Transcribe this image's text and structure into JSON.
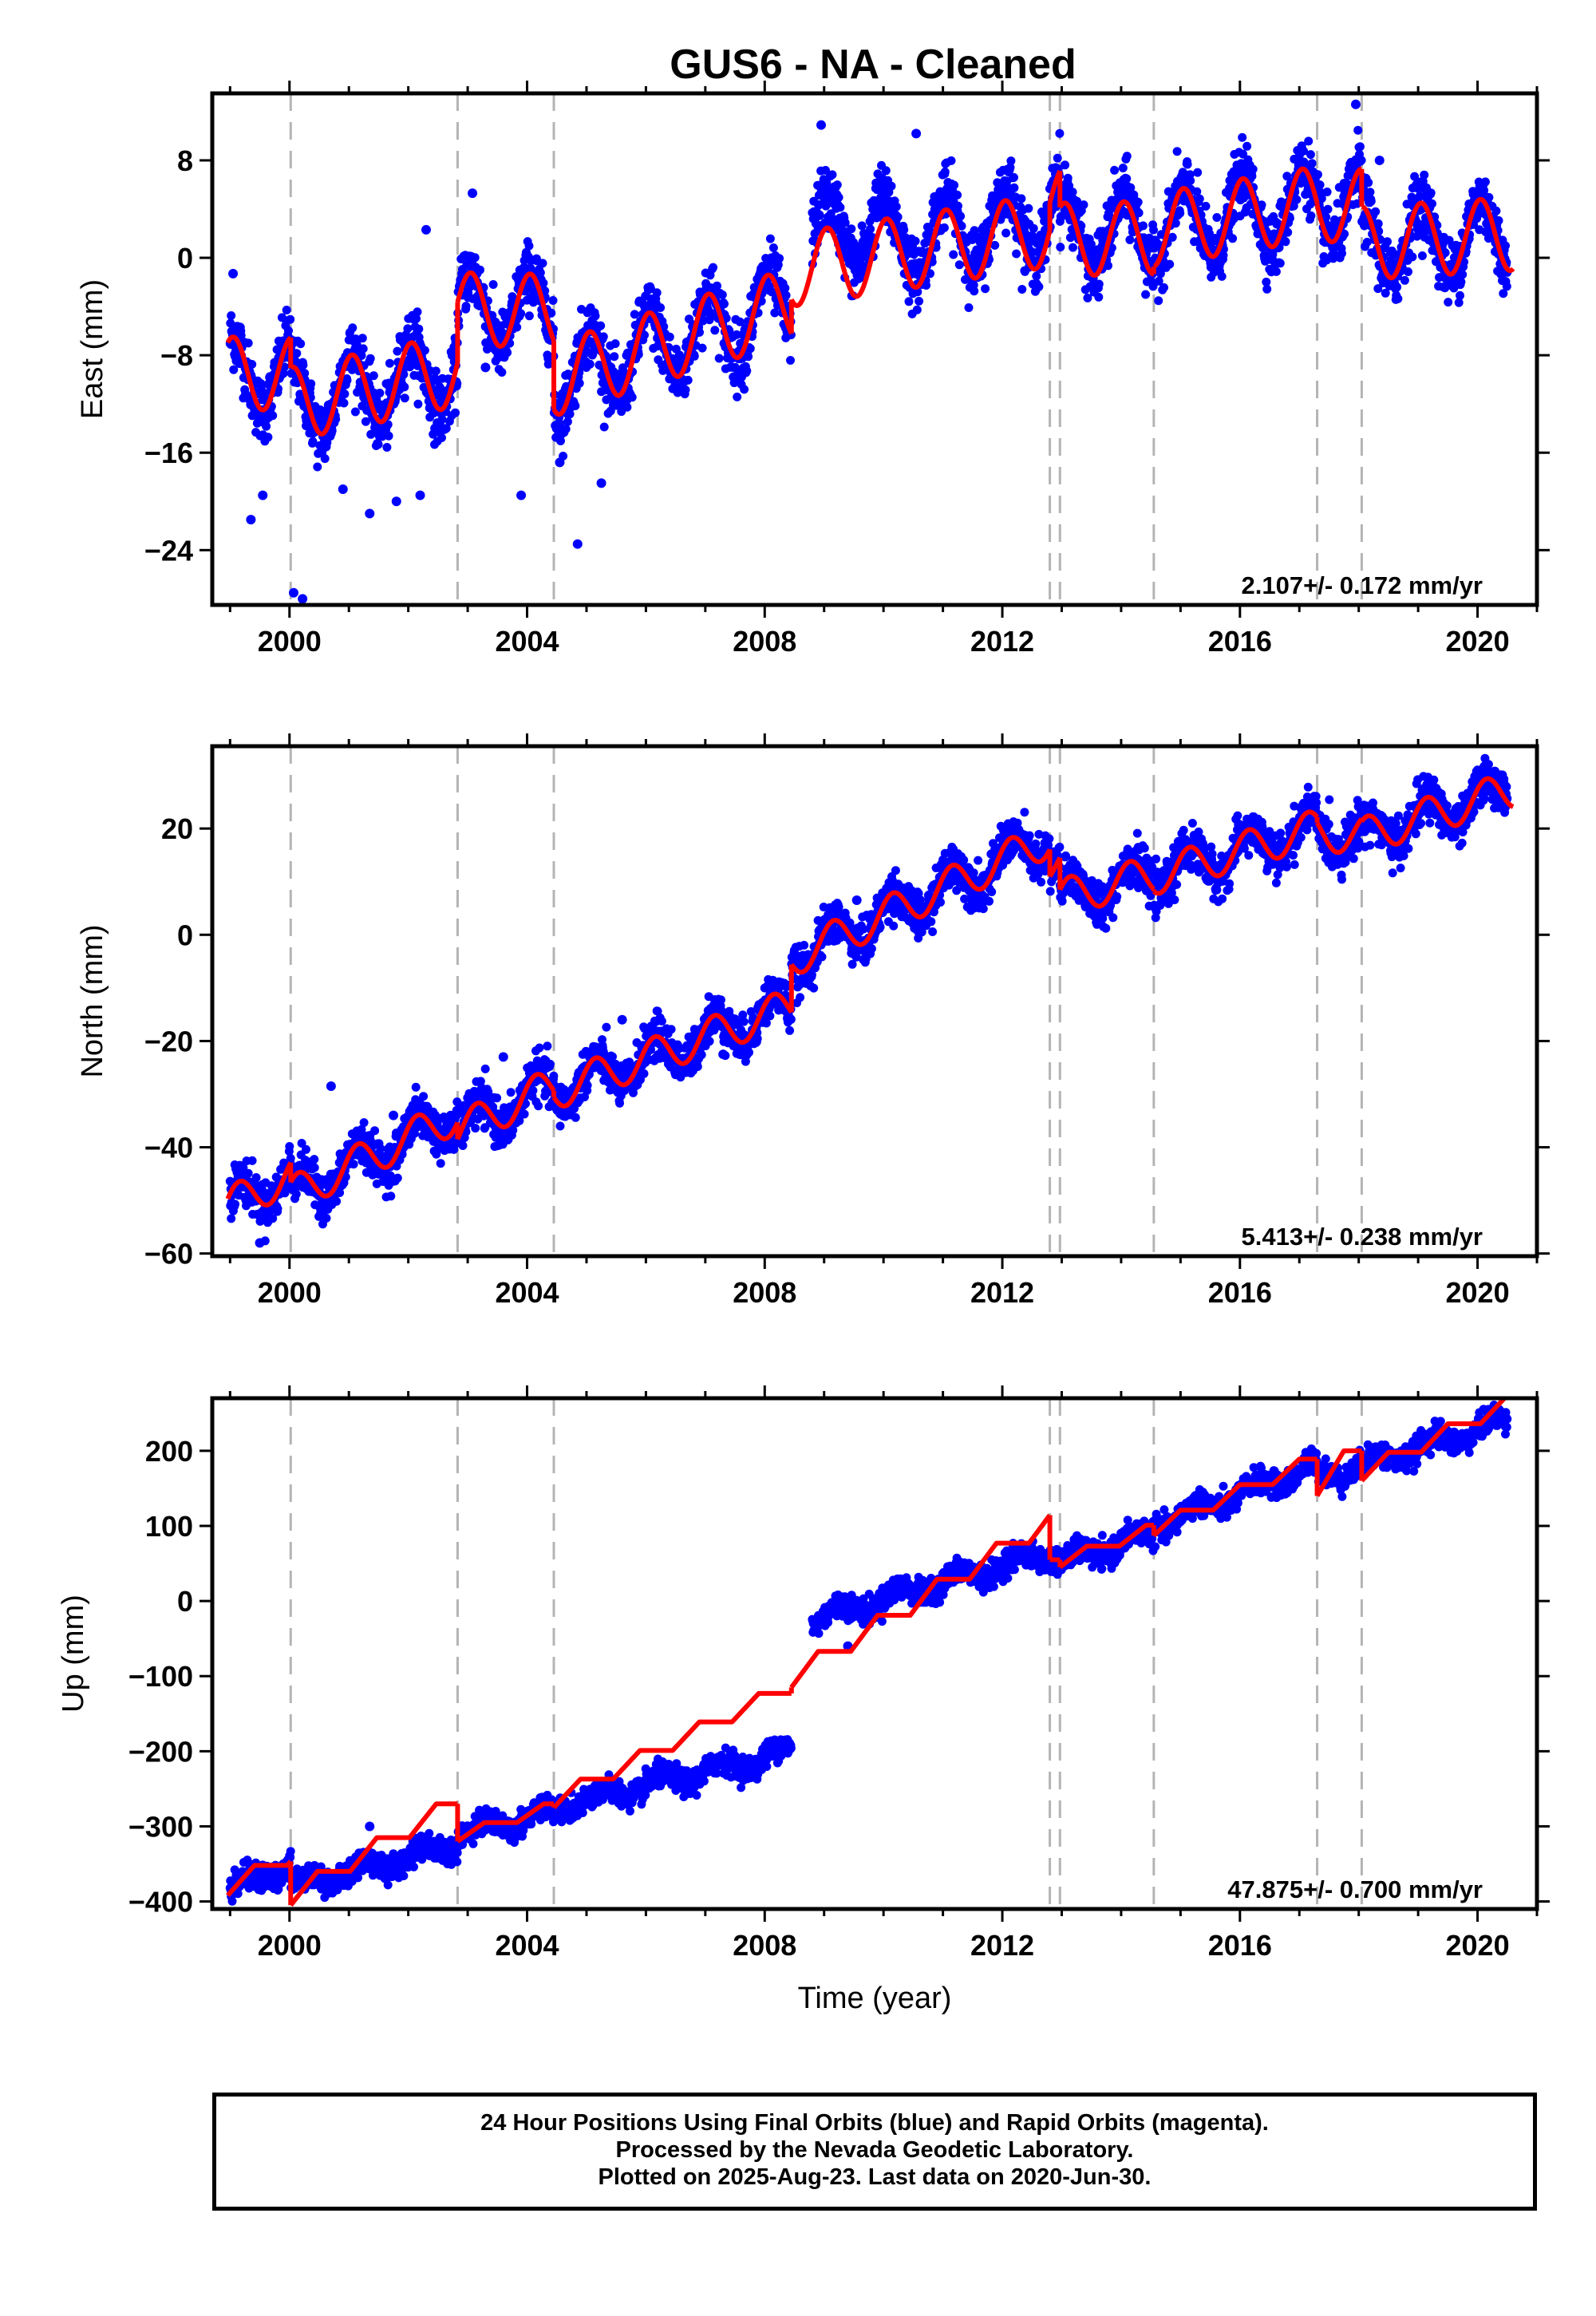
{
  "title": "GUS6  - NA - Cleaned",
  "footer": {
    "line1": "24 Hour Positions Using Final Orbits (blue) and Rapid Orbits (magenta).",
    "line2": "Processed by the Nevada Geodetic Laboratory.",
    "line3": "Plotted on 2025-Aug-23. Last data on 2020-Jun-30."
  },
  "colors": {
    "data": "#0000ff",
    "model": "#ff0000",
    "breaks": "#b4b4b4",
    "frame": "#000000"
  },
  "chart_data": [
    {
      "type": "scatter",
      "component": "east",
      "ylabel": "East (mm)",
      "xlabel": "",
      "xlim": [
        1998.7,
        2021.0
      ],
      "ylim": [
        -28.5,
        13.5
      ],
      "xticks": [
        2000,
        2004,
        2008,
        2012,
        2016,
        2020
      ],
      "yticks": [
        -24,
        -16,
        -8,
        0,
        8
      ],
      "ytick_labels": [
        "−24",
        "−16",
        "−8",
        "0",
        "8"
      ],
      "rate_text": "2.107+/- 0.172 mm/yr",
      "breaks": [
        2000.02,
        2002.83,
        2004.45,
        2012.8,
        2012.97,
        2014.55,
        2017.3,
        2018.05
      ],
      "data_range": [
        1999.0,
        2020.5
      ],
      "data_gap": [
        2008.45,
        2008.8
      ],
      "model": {
        "segments": [
          {
            "from": 1998.96,
            "to": 2000.02,
            "offset": -9.5,
            "slope": 0.0
          },
          {
            "from": 2000.02,
            "to": 2002.83,
            "offset": -12.0,
            "slope": 1.0
          },
          {
            "from": 2002.83,
            "to": 2004.45,
            "offset": -4.2,
            "slope": -0.1
          },
          {
            "from": 2004.45,
            "to": 2008.45,
            "offset": -10.0,
            "slope": 1.55
          },
          {
            "from": 2008.45,
            "to": 2012.8,
            "offset": -1.0,
            "slope": 0.75
          },
          {
            "from": 2012.8,
            "to": 2012.97,
            "offset": 4.5,
            "slope": 0.0
          },
          {
            "from": 2012.97,
            "to": 2014.55,
            "offset": 1.5,
            "slope": 0.1
          },
          {
            "from": 2014.55,
            "to": 2017.3,
            "offset": 2.3,
            "slope": 0.8
          },
          {
            "from": 2017.3,
            "to": 2018.05,
            "offset": 4.3,
            "slope": 0.0
          },
          {
            "from": 2018.05,
            "to": 2020.6,
            "offset": 1.2,
            "slope": 0.3
          }
        ],
        "annual_amp": 3.0,
        "annual_phase": 0.2
      },
      "scatter_sd": 1.3,
      "data_shift": [
        {
          "from": 2008.45,
          "to": 2010.0,
          "shift": 2.5
        },
        {
          "from": 2010.0,
          "to": 2012.8,
          "shift": 1.0
        },
        {
          "from": 2012.97,
          "to": 2014.55,
          "shift": 0.5
        }
      ],
      "outliers": [
        [
          1999.05,
          -1.3
        ],
        [
          1999.35,
          -21.5
        ],
        [
          1999.55,
          -19.5
        ],
        [
          2000.07,
          -27.5
        ],
        [
          2000.22,
          -28.0
        ],
        [
          2000.9,
          -19.0
        ],
        [
          2001.35,
          -21.0
        ],
        [
          2001.8,
          -20.0
        ],
        [
          2002.2,
          -19.5
        ],
        [
          2002.3,
          2.3
        ],
        [
          2002.45,
          -14.0
        ],
        [
          2003.08,
          5.3
        ],
        [
          2003.3,
          -9.0
        ],
        [
          2003.9,
          -19.5
        ],
        [
          2004.55,
          -16.8
        ],
        [
          2004.85,
          -23.5
        ],
        [
          2005.25,
          -18.5
        ],
        [
          2008.95,
          10.9
        ],
        [
          2010.55,
          10.2
        ],
        [
          2017.95,
          12.6
        ],
        [
          2018.35,
          8.0
        ]
      ]
    },
    {
      "type": "scatter",
      "component": "north",
      "ylabel": "North (mm)",
      "xlabel": "",
      "xlim": [
        1998.7,
        2021.0
      ],
      "ylim": [
        -60.5,
        35.5
      ],
      "xticks": [
        2000,
        2004,
        2008,
        2012,
        2016,
        2020
      ],
      "yticks": [
        -60,
        -40,
        -20,
        0,
        20
      ],
      "ytick_labels": [
        "−60",
        "−40",
        "−20",
        "0",
        "20"
      ],
      "rate_text": "5.413+/- 0.238 mm/yr",
      "breaks": [
        2000.02,
        2002.83,
        2004.45,
        2012.8,
        2012.97,
        2014.55,
        2017.3,
        2018.05
      ],
      "data_range": [
        1999.0,
        2020.5
      ],
      "data_gap": [],
      "model": {
        "segments": [
          {
            "from": 1998.96,
            "to": 2000.02,
            "offset": -51.0,
            "slope": 5.4
          },
          {
            "from": 2000.02,
            "to": 2002.83,
            "offset": -49.0,
            "slope": 5.4
          },
          {
            "from": 2002.83,
            "to": 2004.45,
            "offset": -37.0,
            "slope": 5.4
          },
          {
            "from": 2004.45,
            "to": 2008.45,
            "offset": -29.5,
            "slope": 4.0
          },
          {
            "from": 2008.45,
            "to": 2012.8,
            "offset": -4.5,
            "slope": 5.2
          },
          {
            "from": 2012.8,
            "to": 2012.97,
            "offset": 13.0,
            "slope": 0.0
          },
          {
            "from": 2012.97,
            "to": 2014.55,
            "offset": 7.0,
            "slope": 2.8
          },
          {
            "from": 2014.55,
            "to": 2017.3,
            "offset": 11.0,
            "slope": 3.3
          },
          {
            "from": 2017.3,
            "to": 2018.05,
            "offset": 19.0,
            "slope": 0.0
          },
          {
            "from": 2018.05,
            "to": 2020.6,
            "offset": 18.5,
            "slope": 3.5
          }
        ],
        "annual_amp": 3.5,
        "annual_phase": 0.1
      },
      "scatter_sd": 2.0,
      "data_shift": [],
      "outliers": [
        [
          2000.7,
          -28.5
        ],
        [
          2001.75,
          -34.0
        ],
        [
          2003.6,
          -23.0
        ],
        [
          2005.6,
          -16.0
        ],
        [
          2007.3,
          -22.5
        ],
        [
          2009.55,
          6.5
        ],
        [
          2015.3,
          16.5
        ],
        [
          1999.5,
          -58.0
        ]
      ]
    },
    {
      "type": "scatter",
      "component": "up",
      "ylabel": "Up (mm)",
      "xlabel": "Time (year)",
      "xlim": [
        1998.7,
        2021.0
      ],
      "ylim": [
        -410,
        270
      ],
      "xticks": [
        2000,
        2004,
        2008,
        2012,
        2016,
        2020
      ],
      "yticks": [
        -400,
        -300,
        -200,
        -100,
        0,
        100,
        200
      ],
      "ytick_labels": [
        "−400",
        "−300",
        "−200",
        "−100",
        "0",
        "100",
        "200"
      ],
      "rate_text": "47.875+/- 0.700 mm/yr",
      "breaks": [
        2000.02,
        2002.83,
        2004.45,
        2012.8,
        2012.97,
        2014.55,
        2017.3,
        2018.05
      ],
      "data_range": [
        1999.0,
        2020.5
      ],
      "data_gap": [
        2008.45,
        2008.8
      ],
      "model": {
        "segments": [
          {
            "from": 1998.96,
            "to": 2000.02,
            "offset": -392,
            "slope": 40
          },
          {
            "from": 2000.02,
            "to": 2002.83,
            "offset": -405,
            "slope": 45
          },
          {
            "from": 2002.83,
            "to": 2004.45,
            "offset": -320,
            "slope": 25
          },
          {
            "from": 2004.45,
            "to": 2008.45,
            "offset": -275,
            "slope": 38
          },
          {
            "from": 2008.45,
            "to": 2012.8,
            "offset": -115,
            "slope": 48
          },
          {
            "from": 2012.8,
            "to": 2012.97,
            "offset": 55,
            "slope": 0
          },
          {
            "from": 2012.97,
            "to": 2014.55,
            "offset": 45,
            "slope": 28
          },
          {
            "from": 2014.55,
            "to": 2017.3,
            "offset": 87,
            "slope": 34
          },
          {
            "from": 2017.3,
            "to": 2018.05,
            "offset": 140,
            "slope": 60
          },
          {
            "from": 2018.05,
            "to": 2020.6,
            "offset": 160,
            "slope": 38
          }
        ],
        "step_model": true,
        "annual_amp": 0,
        "annual_phase": 0
      },
      "scatter_sd": 8,
      "data_shift": [
        {
          "from": 2008.45,
          "to": 2012.8,
          "shift": 80
        },
        {
          "from": 2012.8,
          "to": 2012.97,
          "shift": 0
        },
        {
          "from": 2012.97,
          "to": 2014.55,
          "shift": 10
        },
        {
          "from": 2014.55,
          "to": 2017.3,
          "shift": 10
        },
        {
          "from": 2017.3,
          "to": 2018.05,
          "shift": 15
        },
        {
          "from": 2018.05,
          "to": 2020.6,
          "shift": 10
        }
      ],
      "data_override": [
        {
          "from": 1999.0,
          "to": 2000.02,
          "start": -385,
          "end": -350
        },
        {
          "from": 2000.02,
          "to": 2002.83,
          "start": -380,
          "end": -325
        },
        {
          "from": 2002.83,
          "to": 2004.45,
          "start": -310,
          "end": -280
        },
        {
          "from": 2004.45,
          "to": 2008.45,
          "start": -275,
          "end": -200
        },
        {
          "from": 2008.8,
          "to": 2012.8,
          "start": -25,
          "end": 65
        },
        {
          "from": 2012.97,
          "to": 2014.55,
          "start": 50,
          "end": 90
        },
        {
          "from": 2014.55,
          "to": 2017.3,
          "start": 100,
          "end": 180
        },
        {
          "from": 2017.3,
          "to": 2018.05,
          "start": 165,
          "end": 180
        },
        {
          "from": 2018.05,
          "to": 2020.5,
          "start": 180,
          "end": 240
        }
      ],
      "outliers": [
        [
          2009.4,
          -60
        ],
        [
          2001.35,
          -300
        ]
      ]
    }
  ]
}
